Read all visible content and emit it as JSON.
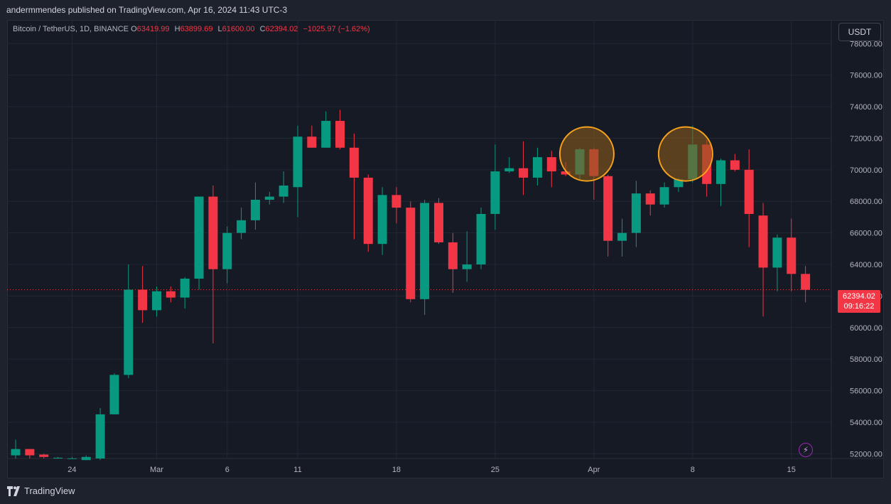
{
  "header": {
    "published_by": "andermmendes published on TradingView.com, Apr 16, 2024 11:43 UTC-3"
  },
  "legend": {
    "symbol": "Bitcoin / TetherUS, 1D, BINANCE",
    "open_label": "O",
    "open": "63419.99",
    "high_label": "H",
    "high": "63899.69",
    "low_label": "L",
    "low": "61600.00",
    "close_label": "C",
    "close": "62394.02",
    "change": "−1025.97 (−1.62%)"
  },
  "currency_button": "USDT",
  "last_price": {
    "price": "62394.02",
    "countdown": "09:16:22"
  },
  "brand": "TradingView",
  "colors": {
    "up": "#089981",
    "down": "#f23645",
    "background": "#161a25",
    "grid": "#232734",
    "highlight_ring": "#f7a21b",
    "highlight_fill": "#8a5a1c"
  },
  "chart_data": {
    "type": "candlestick",
    "ylim": [
      51700,
      79500
    ],
    "y_ticks": [
      "52000.00",
      "54000.00",
      "56000.00",
      "58000.00",
      "60000.00",
      "62000.00",
      "64000.00",
      "66000.00",
      "68000.00",
      "70000.00",
      "72000.00",
      "74000.00",
      "76000.00",
      "78000.00"
    ],
    "y_tick_values": [
      52000,
      54000,
      56000,
      58000,
      60000,
      62000,
      64000,
      66000,
      68000,
      70000,
      72000,
      74000,
      76000,
      78000
    ],
    "x_ticks": [
      {
        "label": "24",
        "index": 4
      },
      {
        "label": "Mar",
        "index": 10
      },
      {
        "label": "6",
        "index": 15
      },
      {
        "label": "11",
        "index": 20
      },
      {
        "label": "18",
        "index": 27
      },
      {
        "label": "25",
        "index": 34
      },
      {
        "label": "Apr",
        "index": 41
      },
      {
        "label": "8",
        "index": 48
      },
      {
        "label": "15",
        "index": 55
      }
    ],
    "candles": [
      {
        "o": 51900,
        "h": 52900,
        "l": 51700,
        "c": 52300
      },
      {
        "o": 52300,
        "h": 52300,
        "l": 51700,
        "c": 51900
      },
      {
        "o": 51950,
        "h": 52000,
        "l": 51700,
        "c": 51800
      },
      {
        "o": 51700,
        "h": 51800,
        "l": 51700,
        "c": 51750
      },
      {
        "o": 51700,
        "h": 51800,
        "l": 51700,
        "c": 51710
      },
      {
        "o": 51600,
        "h": 51900,
        "l": 51600,
        "c": 51800
      },
      {
        "o": 51700,
        "h": 54900,
        "l": 51600,
        "c": 54500
      },
      {
        "o": 54500,
        "h": 57100,
        "l": 54500,
        "c": 57000
      },
      {
        "o": 57000,
        "h": 64000,
        "l": 56800,
        "c": 62400
      },
      {
        "o": 62400,
        "h": 63900,
        "l": 60300,
        "c": 61100
      },
      {
        "o": 61100,
        "h": 62600,
        "l": 60700,
        "c": 62300
      },
      {
        "o": 62300,
        "h": 62600,
        "l": 61600,
        "c": 61900
      },
      {
        "o": 61900,
        "h": 63200,
        "l": 61200,
        "c": 63100
      },
      {
        "o": 63100,
        "h": 68200,
        "l": 62400,
        "c": 68300
      },
      {
        "o": 68300,
        "h": 69000,
        "l": 59000,
        "c": 63700
      },
      {
        "o": 63700,
        "h": 66400,
        "l": 62800,
        "c": 66000
      },
      {
        "o": 66000,
        "h": 67600,
        "l": 65600,
        "c": 66800
      },
      {
        "o": 66800,
        "h": 69200,
        "l": 66200,
        "c": 68100
      },
      {
        "o": 68100,
        "h": 68600,
        "l": 67800,
        "c": 68300
      },
      {
        "o": 68300,
        "h": 69900,
        "l": 67900,
        "c": 69000
      },
      {
        "o": 68900,
        "h": 72800,
        "l": 67000,
        "c": 72100
      },
      {
        "o": 72100,
        "h": 72800,
        "l": 71400,
        "c": 71400
      },
      {
        "o": 71400,
        "h": 73700,
        "l": 71400,
        "c": 73100
      },
      {
        "o": 73100,
        "h": 73800,
        "l": 71300,
        "c": 71400
      },
      {
        "o": 71400,
        "h": 72300,
        "l": 65600,
        "c": 69500
      },
      {
        "o": 69500,
        "h": 69700,
        "l": 64800,
        "c": 65300
      },
      {
        "o": 65300,
        "h": 68900,
        "l": 64600,
        "c": 68400
      },
      {
        "o": 68400,
        "h": 68900,
        "l": 66600,
        "c": 67600
      },
      {
        "o": 67600,
        "h": 68000,
        "l": 61600,
        "c": 61800
      },
      {
        "o": 61800,
        "h": 68100,
        "l": 60800,
        "c": 67900
      },
      {
        "o": 67900,
        "h": 68200,
        "l": 65300,
        "c": 65400
      },
      {
        "o": 65400,
        "h": 66000,
        "l": 62200,
        "c": 63700
      },
      {
        "o": 63700,
        "h": 66100,
        "l": 62900,
        "c": 64000
      },
      {
        "o": 64000,
        "h": 67600,
        "l": 63700,
        "c": 67200
      },
      {
        "o": 67200,
        "h": 71600,
        "l": 66200,
        "c": 69900
      },
      {
        "o": 69900,
        "h": 70800,
        "l": 69800,
        "c": 70100
      },
      {
        "o": 70100,
        "h": 71800,
        "l": 68400,
        "c": 69500
      },
      {
        "o": 69500,
        "h": 71400,
        "l": 69000,
        "c": 70800
      },
      {
        "o": 70800,
        "h": 71200,
        "l": 68900,
        "c": 69900
      },
      {
        "o": 69900,
        "h": 70500,
        "l": 69600,
        "c": 69700
      },
      {
        "o": 69700,
        "h": 71400,
        "l": 69400,
        "c": 71300
      },
      {
        "o": 71300,
        "h": 71400,
        "l": 68100,
        "c": 69600
      },
      {
        "o": 69600,
        "h": 69700,
        "l": 64500,
        "c": 65500
      },
      {
        "o": 65500,
        "h": 66900,
        "l": 64500,
        "c": 66000
      },
      {
        "o": 66000,
        "h": 69300,
        "l": 65100,
        "c": 68500
      },
      {
        "o": 68500,
        "h": 68700,
        "l": 67100,
        "c": 67800
      },
      {
        "o": 67800,
        "h": 69200,
        "l": 67600,
        "c": 68900
      },
      {
        "o": 68900,
        "h": 69500,
        "l": 68600,
        "c": 69400
      },
      {
        "o": 69400,
        "h": 72800,
        "l": 69200,
        "c": 71600
      },
      {
        "o": 71600,
        "h": 71900,
        "l": 68300,
        "c": 69100
      },
      {
        "o": 69100,
        "h": 70700,
        "l": 67700,
        "c": 70600
      },
      {
        "o": 70600,
        "h": 71000,
        "l": 69900,
        "c": 70000
      },
      {
        "o": 70000,
        "h": 71300,
        "l": 65100,
        "c": 67200
      },
      {
        "o": 67100,
        "h": 67900,
        "l": 60700,
        "c": 63800
      },
      {
        "o": 63800,
        "h": 65900,
        "l": 62300,
        "c": 65700
      },
      {
        "o": 65700,
        "h": 66900,
        "l": 62300,
        "c": 63400
      },
      {
        "o": 63400,
        "h": 63900,
        "l": 61600,
        "c": 62394
      }
    ],
    "highlights": [
      {
        "from_index": 40,
        "to_index": 41
      },
      {
        "from_index": 47,
        "to_index": 48
      }
    ],
    "last_price_line": 62394.02
  }
}
